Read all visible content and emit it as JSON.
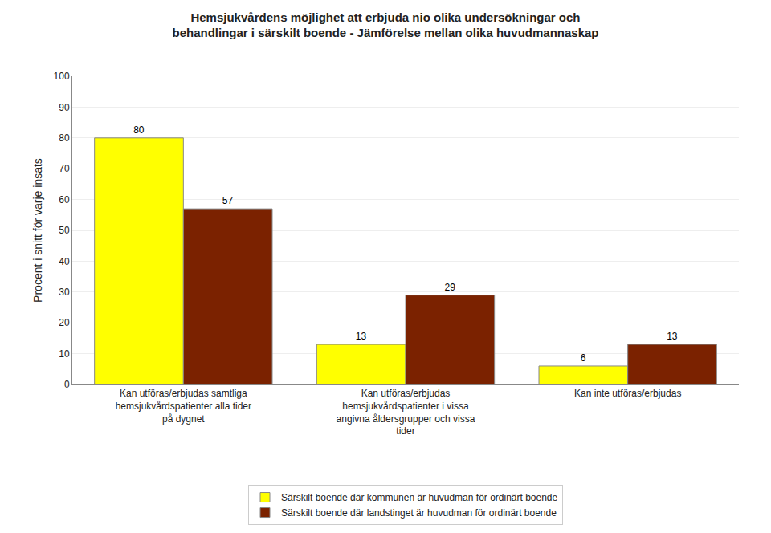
{
  "chart_data": {
    "type": "bar",
    "title": "Hemsjukvårdens möjlighet att erbjuda nio olika undersökningar och\nbehandlingar i särskilt boende - Jämförelse mellan olika huvudmannaskap",
    "categories": [
      "Kan utföras/erbjudas samtliga\nhemsjukvårdspatienter alla tider\npå dygnet",
      "Kan utföras/erbjudas\nhemsjukvårdspatienter i vissa\nangivna åldersgrupper och vissa\ntider",
      "Kan inte utföras/erbjudas"
    ],
    "series": [
      {
        "name": "Särskilt boende där kommunen är huvudman för ordinärt boende",
        "values": [
          80,
          13,
          6
        ],
        "color": "#FFFF00"
      },
      {
        "name": "Särskilt boende där landstinget är huvudman för ordinärt boende",
        "values": [
          57,
          29,
          13
        ],
        "color": "#7B2200"
      }
    ],
    "ylabel": "Procent i snitt för varje insats",
    "ylim": [
      0,
      100
    ],
    "yticks": [
      0,
      10,
      20,
      30,
      40,
      50,
      60,
      70,
      80,
      90,
      100
    ],
    "grid": true,
    "data_labels": true,
    "legend": "bottom"
  }
}
